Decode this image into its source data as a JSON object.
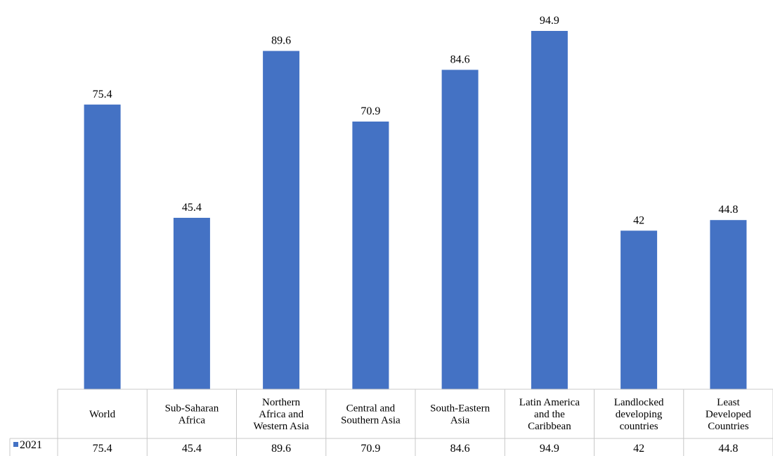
{
  "chart_data": {
    "type": "bar",
    "categories": [
      "World",
      "Sub-Saharan Africa",
      "Northern Africa and Western Asia",
      "Central and Southern Asia",
      "South-Eastern Asia",
      "Latin America and the Caribbean",
      "Landlocked developing countries",
      "Least Developed Countries"
    ],
    "category_lines": [
      [
        "World"
      ],
      [
        "Sub-Saharan",
        "Africa"
      ],
      [
        "Northern",
        "Africa and",
        "Western Asia"
      ],
      [
        "Central and",
        "Southern Asia"
      ],
      [
        "South-Eastern",
        "Asia"
      ],
      [
        "Latin America",
        "and the",
        "Caribbean"
      ],
      [
        "Landlocked",
        "developing",
        "countries"
      ],
      [
        "Least",
        "Developed",
        "Countries"
      ]
    ],
    "series": [
      {
        "name": "2021",
        "values": [
          75.4,
          45.4,
          89.6,
          70.9,
          84.6,
          94.9,
          42,
          44.8
        ],
        "value_labels": [
          "75.4",
          "45.4",
          "89.6",
          "70.9",
          "84.6",
          "94.9",
          "42",
          "44.8"
        ],
        "color": "#4472C4"
      }
    ],
    "ylim": [
      0,
      100
    ],
    "grid": false,
    "legend": "data-table",
    "data_table": true
  }
}
